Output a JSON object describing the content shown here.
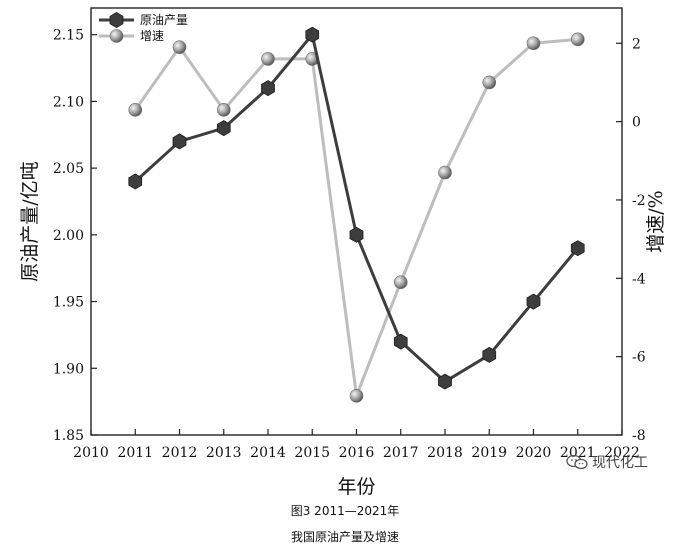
{
  "chart_data": {
    "type": "line",
    "x": [
      2011,
      2012,
      2013,
      2014,
      2015,
      2016,
      2017,
      2018,
      2019,
      2020,
      2021
    ],
    "xlabel": "年份",
    "xlim": [
      2010,
      2022
    ],
    "xticks": [
      2010,
      2011,
      2012,
      2013,
      2014,
      2015,
      2016,
      2017,
      2018,
      2019,
      2020,
      2021,
      2022
    ],
    "y_left": {
      "label": "原油产量/亿吨",
      "lim": [
        1.85,
        2.17
      ],
      "ticks": [
        "1.85",
        "1.90",
        "1.95",
        "2.00",
        "2.05",
        "2.10",
        "2.15"
      ]
    },
    "y_right": {
      "label": "增速/%",
      "lim": [
        -8,
        2.9
      ],
      "ticks": [
        "-8",
        "-6",
        "-4",
        "-2",
        "0",
        "2"
      ]
    },
    "series": [
      {
        "name": "原油产量",
        "axis": "left",
        "marker": "hexagon",
        "color": "#3d3d3d",
        "values": [
          2.04,
          2.07,
          2.08,
          2.11,
          2.15,
          2.0,
          1.92,
          1.89,
          1.91,
          1.95,
          1.99
        ]
      },
      {
        "name": "增速",
        "axis": "right",
        "marker": "sphere",
        "color": "#bdbdbd",
        "values": [
          0.3,
          1.9,
          0.3,
          1.6,
          1.6,
          -7.0,
          -4.1,
          -1.3,
          1.0,
          2.0,
          2.1
        ]
      }
    ],
    "legend": "top-left",
    "grid": false
  },
  "caption": {
    "line1": "图3  2011—2021年",
    "line2": "我国原油产量及增速"
  },
  "watermark": {
    "text": "现代化工",
    "icon": "wechat-icon"
  }
}
